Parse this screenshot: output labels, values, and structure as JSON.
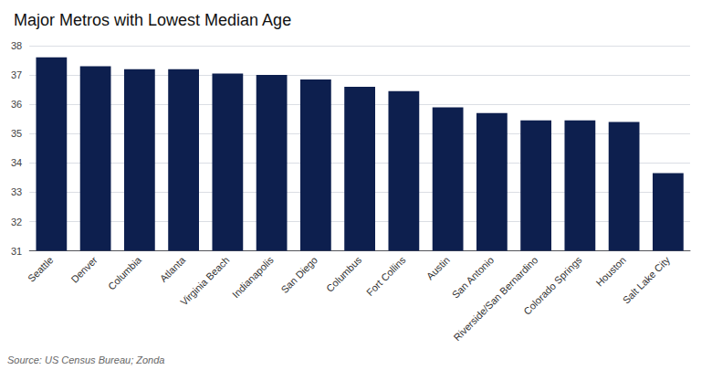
{
  "chart_data": {
    "type": "bar",
    "title": "Major Metros with Lowest Median Age",
    "annotations": [
      "Source: US Census Bureau; Zonda"
    ],
    "categories": [
      "Seattle",
      "Denver",
      "Columbia",
      "Atlanta",
      "Virginia Beach",
      "Indianapolis",
      "San Diego",
      "Columbus",
      "Fort Collins",
      "Austin",
      "San Antonio",
      "Riverside/San Bernardino",
      "Colorado Springs",
      "Houston",
      "Salt Lake City"
    ],
    "values": [
      37.6,
      37.3,
      37.2,
      37.2,
      37.05,
      37.0,
      36.85,
      36.6,
      36.45,
      35.9,
      35.7,
      35.45,
      35.45,
      35.4,
      33.65
    ],
    "color": "#0d1f4e",
    "ylim": [
      31,
      38
    ],
    "yticks": [
      31,
      32,
      33,
      34,
      35,
      36,
      37,
      38
    ],
    "grid": true
  }
}
